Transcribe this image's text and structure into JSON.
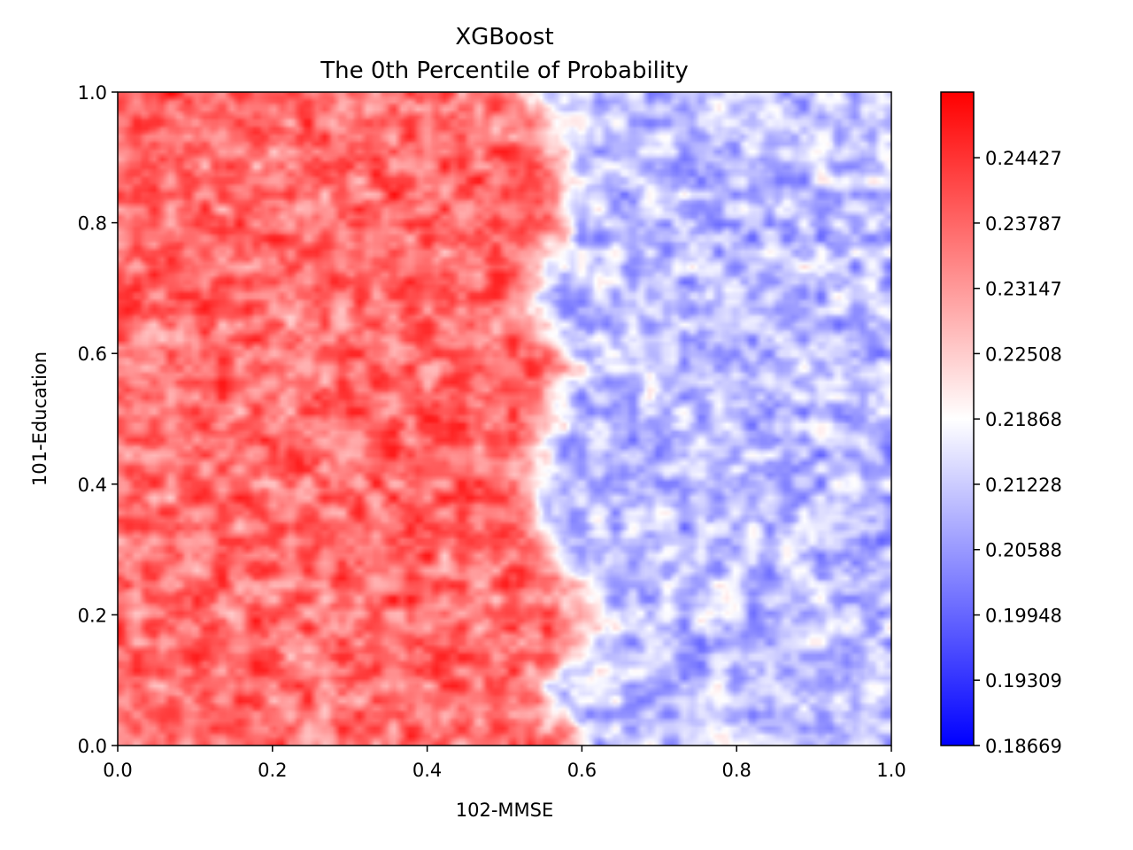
{
  "chart_data": {
    "type": "heatmap",
    "title": "XGBoost",
    "subtitle": "The 0th Percentile of Probability",
    "xlabel": "102-MMSE",
    "ylabel": "101-Education",
    "xlim": [
      0.0,
      1.0
    ],
    "ylim": [
      0.0,
      1.0
    ],
    "xticks": [
      "0.0",
      "0.2",
      "0.4",
      "0.6",
      "0.8",
      "1.0"
    ],
    "yticks": [
      "0.0",
      "0.2",
      "0.4",
      "0.6",
      "0.8",
      "1.0"
    ],
    "colorbar": {
      "cmap": "bwr",
      "vmin": 0.18669,
      "vmax": 0.2507,
      "ticks": [
        "0.18669",
        "0.19309",
        "0.19948",
        "0.20588",
        "0.21228",
        "0.21868",
        "0.22508",
        "0.23147",
        "0.23787",
        "0.24427"
      ],
      "low_color": "#0000ff",
      "mid_color": "#ffffff",
      "high_color": "#ff0000"
    },
    "pattern": {
      "boundary_x": 0.56,
      "left_level": 0.237,
      "right_level": 0.211,
      "noise_amplitude": 0.008
    },
    "grid": false
  }
}
